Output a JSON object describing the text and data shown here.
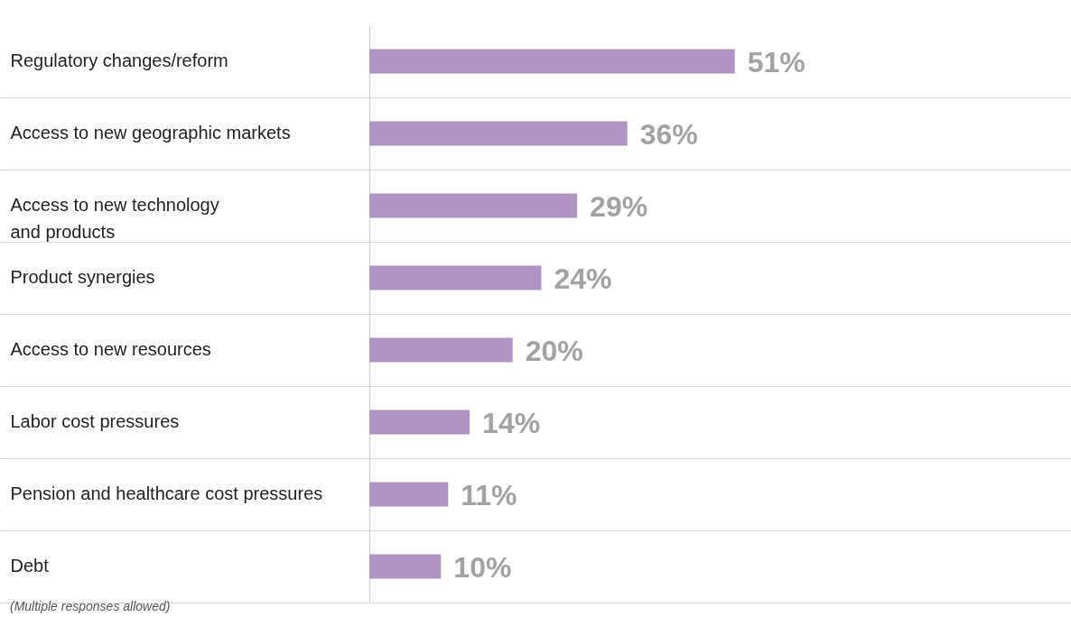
{
  "chart_data": {
    "type": "bar",
    "orientation": "horizontal",
    "categories": [
      "Regulatory changes/reform",
      "Access to new geographic markets",
      "Access to new technology\nand products",
      "Product synergies",
      "Access to new resources",
      "Labor cost pressures",
      "Pension and healthcare cost pressures",
      "Debt"
    ],
    "values": [
      51,
      36,
      29,
      24,
      20,
      14,
      11,
      10
    ],
    "value_labels": [
      "51%",
      "36%",
      "29%",
      "24%",
      "20%",
      "14%",
      "11%",
      "10%"
    ],
    "color": "#b194c6",
    "grid": "y",
    "annotations": [
      "(Multiple responses allowed)"
    ]
  }
}
